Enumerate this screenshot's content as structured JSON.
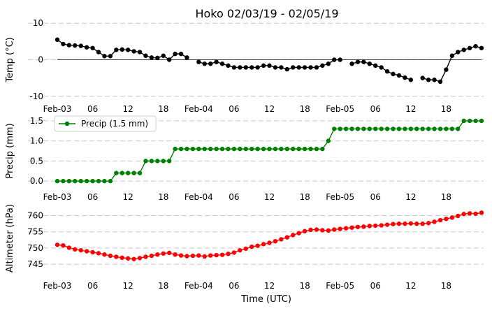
{
  "chart_data": {
    "type": "line",
    "title": "Hoko 02/03/19 - 02/05/19",
    "xlabel": "Time (UTC)",
    "x_tick_labels": [
      "Feb-03",
      "06",
      "12",
      "18",
      "Feb-04",
      "06",
      "12",
      "18",
      "Feb-05",
      "06",
      "12",
      "18"
    ],
    "x_hours_between_points": 1,
    "panels": [
      {
        "ylabel": "Temp (°C)",
        "ylim": [
          -11,
          11
        ],
        "yticks": [
          -10,
          0,
          10
        ],
        "zero_line": true,
        "legend": "",
        "series": [
          {
            "color": "#000000",
            "values": [
              5.5,
              4.3,
              4,
              3.9,
              3.8,
              3.4,
              3.2,
              2.1,
              1,
              1,
              2.7,
              2.8,
              2.7,
              2.3,
              2.1,
              1.1,
              0.6,
              0.5,
              1.1,
              0,
              1.6,
              1.6,
              0.6,
              null,
              -0.6,
              -1.1,
              -1.1,
              -0.6,
              -1.1,
              -1.6,
              -2.1,
              -2.1,
              -2.1,
              -2.1,
              -2.1,
              -1.6,
              -1.6,
              -2.1,
              -2.1,
              -2.6,
              -2.1,
              -2.1,
              -2.1,
              -2.1,
              -2.1,
              -1.6,
              -1.1,
              0,
              0,
              null,
              -1.1,
              -0.6,
              -0.6,
              -1.1,
              -1.6,
              -2.1,
              -3.2,
              -3.9,
              -4.3,
              -4.9,
              -5.5,
              null,
              -5,
              -5.5,
              -5.5,
              -6,
              -2.7,
              1.1,
              2.1,
              2.7,
              3.2,
              3.7,
              3.2
            ]
          }
        ]
      },
      {
        "ylabel": "Precip (mm)",
        "ylim": [
          -0.12,
          1.62
        ],
        "yticks": [
          0.0,
          0.5,
          1.0,
          1.5
        ],
        "tick_format": 1,
        "legend": "Precip (1.5 mm)",
        "series": [
          {
            "name": "Precip (1.5 mm)",
            "color": "#008000",
            "values": [
              0,
              0,
              0,
              0,
              0,
              0,
              0,
              0,
              0,
              0,
              0.2,
              0.2,
              0.2,
              0.2,
              0.2,
              0.5,
              0.5,
              0.5,
              0.5,
              0.5,
              0.8,
              0.8,
              0.8,
              0.8,
              0.8,
              0.8,
              0.8,
              0.8,
              0.8,
              0.8,
              0.8,
              0.8,
              0.8,
              0.8,
              0.8,
              0.8,
              0.8,
              0.8,
              0.8,
              0.8,
              0.8,
              0.8,
              0.8,
              0.8,
              0.8,
              0.8,
              1,
              1.3,
              1.3,
              1.3,
              1.3,
              1.3,
              1.3,
              1.3,
              1.3,
              1.3,
              1.3,
              1.3,
              1.3,
              1.3,
              1.3,
              1.3,
              1.3,
              1.3,
              1.3,
              1.3,
              1.3,
              1.3,
              1.3,
              1.5,
              1.5,
              1.5,
              1.5
            ]
          }
        ]
      },
      {
        "ylabel": "Altimeter (hPa)",
        "ylim": [
          742,
          764
        ],
        "yticks": [
          745,
          750,
          755,
          760
        ],
        "legend": "",
        "series": [
          {
            "color": "#ff0000",
            "values": [
              751,
              750.8,
              750.1,
              749.6,
              749.3,
              749,
              748.7,
              748.4,
              748,
              747.6,
              747.3,
              747,
              746.8,
              746.6,
              746.9,
              747.3,
              747.6,
              748,
              748.3,
              748.5,
              748,
              747.7,
              747.5,
              747.6,
              747.7,
              747.4,
              747.7,
              747.8,
              747.9,
              748.2,
              748.6,
              749.3,
              749.8,
              750.4,
              750.7,
              751.2,
              751.6,
              752.1,
              752.7,
              753.3,
              754,
              754.6,
              755.2,
              755.6,
              755.7,
              755.5,
              755.4,
              755.7,
              755.9,
              756.1,
              756.3,
              756.5,
              756.6,
              756.8,
              756.9,
              757,
              757.2,
              757.4,
              757.5,
              757.5,
              757.6,
              757.5,
              757.5,
              757.7,
              758.1,
              758.6,
              759,
              759.4,
              759.9,
              760.5,
              760.7,
              760.6,
              760.9
            ]
          }
        ]
      }
    ]
  }
}
